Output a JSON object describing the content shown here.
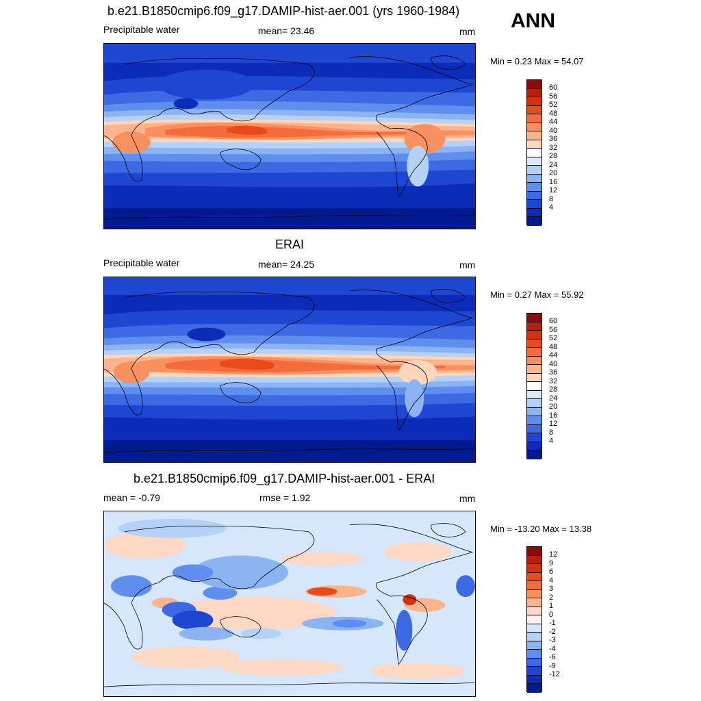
{
  "season": "ANN",
  "panels": [
    {
      "title": "b.e21.B1850cmip6.f09_g17.DAMIP-hist-aer.001 (yrs 1960-1984)",
      "left_label": "Precipitable water",
      "center_label": "mean=  23.46",
      "units": "mm",
      "minmax": "Min =   0.23 Max =  54.07",
      "colorbar": {
        "labels": [
          "60",
          "56",
          "52",
          "48",
          "44",
          "40",
          "36",
          "32",
          "28",
          "24",
          "20",
          "16",
          "12",
          "8",
          "4"
        ],
        "colors": [
          "#8b0a0a",
          "#b3200b",
          "#d4300c",
          "#e84a1c",
          "#f46b3c",
          "#f9905f",
          "#fcb48d",
          "#fdd6bb",
          "#ffffff",
          "#dae9fb",
          "#b4d2f7",
          "#8cb4f2",
          "#5f8fee",
          "#3b6ae4",
          "#1d46d3",
          "#0b2bb8",
          "#001a8f"
        ]
      }
    },
    {
      "title": "ERAI",
      "left_label": "Precipitable water",
      "center_label": "mean=  24.25",
      "units": "mm",
      "minmax": "Min =   0.27 Max =  55.92",
      "colorbar": {
        "labels": [
          "60",
          "56",
          "52",
          "48",
          "44",
          "40",
          "36",
          "32",
          "28",
          "24",
          "20",
          "16",
          "12",
          "8",
          "4"
        ],
        "colors": [
          "#8b0a0a",
          "#b3200b",
          "#d4300c",
          "#e84a1c",
          "#f46b3c",
          "#f9905f",
          "#fcb48d",
          "#fdd6bb",
          "#ffffff",
          "#dae9fb",
          "#b4d2f7",
          "#8cb4f2",
          "#5f8fee",
          "#3b6ae4",
          "#1d46d3",
          "#0b2bb8",
          "#001a8f"
        ]
      }
    },
    {
      "title": "b.e21.B1850cmip6.f09_g17.DAMIP-hist-aer.001 - ERAI",
      "left_label": "mean =  -0.79",
      "center_label": "rmse =   1.92",
      "units": "mm",
      "minmax": "Min = -13.20 Max =  13.38",
      "colorbar": {
        "labels": [
          "12",
          "9",
          "6",
          "4",
          "3",
          "2",
          "1",
          "0",
          "-1",
          "-2",
          "-3",
          "-4",
          "-6",
          "-9",
          "-12"
        ],
        "colors": [
          "#8b0a0a",
          "#b3200b",
          "#d4300c",
          "#e84a1c",
          "#f46b3c",
          "#f9905f",
          "#fcb48d",
          "#fdd9c3",
          "#fff4ee",
          "#d6e6fb",
          "#b4d2f7",
          "#8cb4f2",
          "#5f8fee",
          "#3b6ae4",
          "#1d46d3",
          "#0b2bb8",
          "#001a8f"
        ]
      }
    }
  ]
}
